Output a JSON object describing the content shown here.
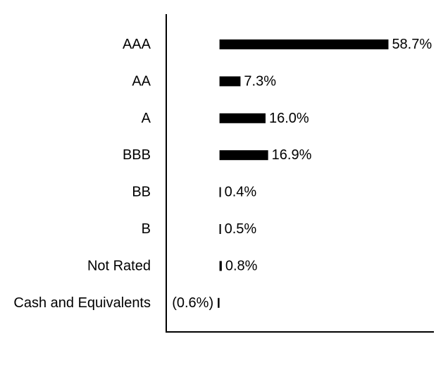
{
  "chart_data": {
    "type": "bar",
    "orientation": "horizontal",
    "categories": [
      "AAA",
      "AA",
      "A",
      "BBB",
      "BB",
      "B",
      "Not Rated",
      "Cash and Equivalents"
    ],
    "values": [
      58.7,
      7.3,
      16.0,
      16.9,
      0.4,
      0.5,
      0.8,
      -0.6
    ],
    "value_labels": [
      "58.7%",
      "7.3%",
      "16.0%",
      "16.9%",
      "0.4%",
      "0.5%",
      "0.8%",
      "(0.6%)"
    ],
    "title": "",
    "xlabel": "",
    "ylabel": "",
    "xlim": [
      -18.5,
      74.5
    ],
    "grid": false,
    "legend": "none",
    "bar_color": "#000000",
    "axis_color": "#000000"
  }
}
